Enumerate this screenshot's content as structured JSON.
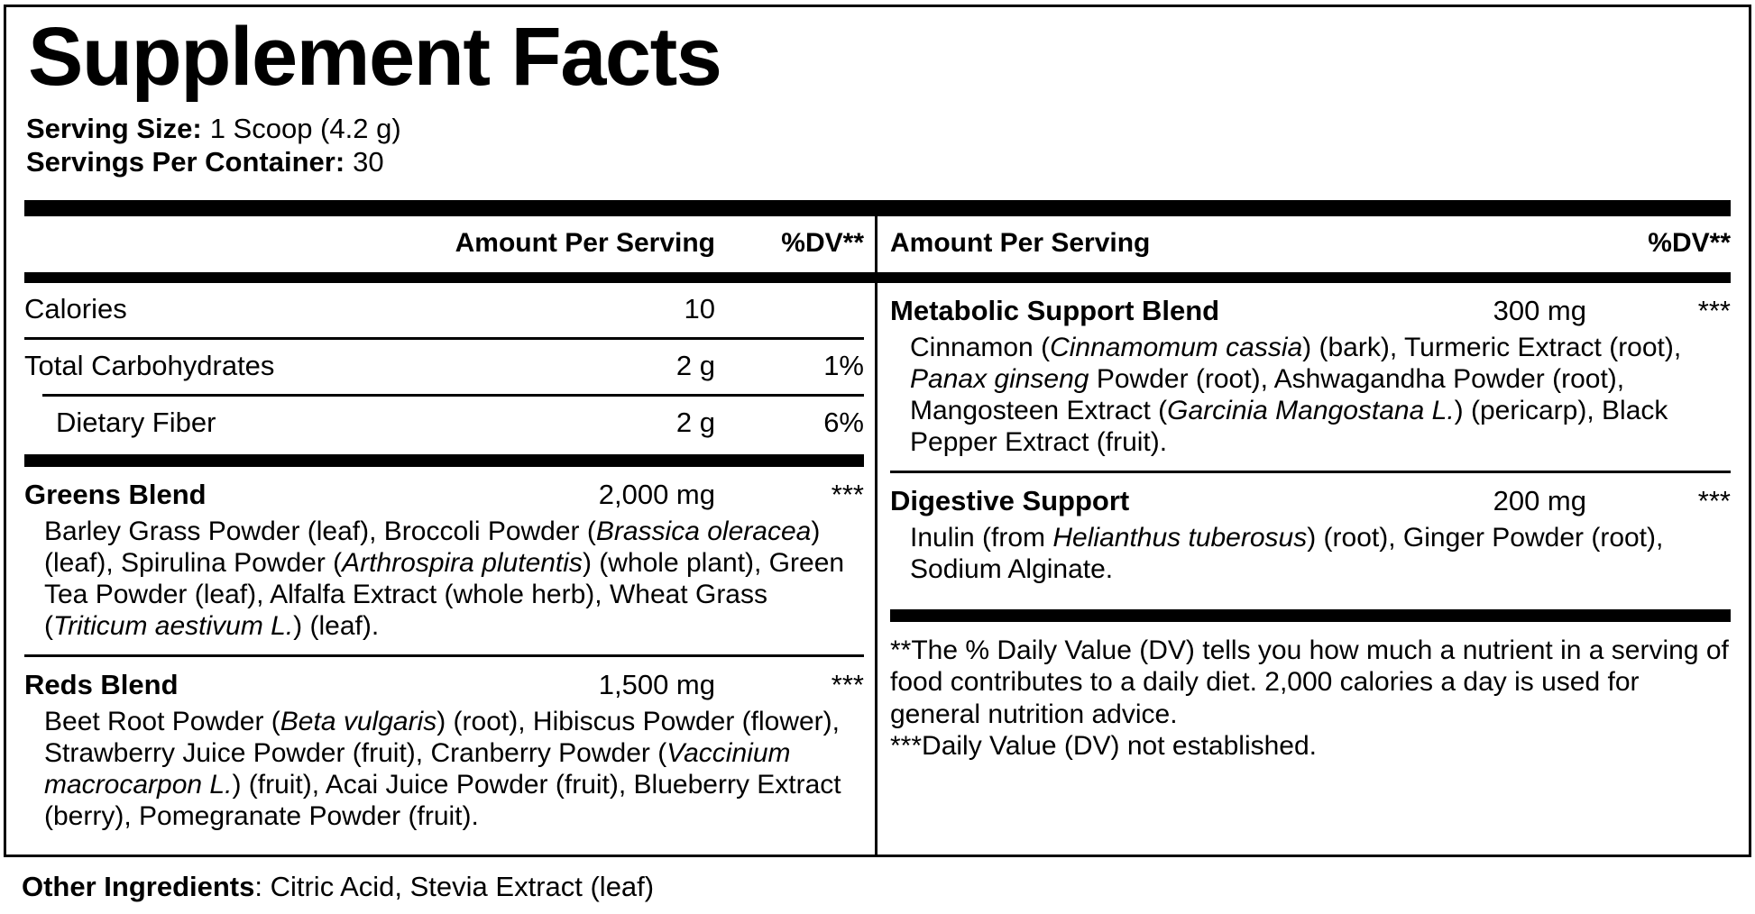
{
  "title": "Supplement Facts",
  "serving": {
    "size_label": "Serving Size:",
    "size_value": "1 Scoop (4.2 g)",
    "per_container_label": "Servings Per Container:",
    "per_container_value": "30"
  },
  "left_column": {
    "header": {
      "amount_label": "Amount Per Serving",
      "dv_label": "%DV**"
    },
    "nutrients": [
      {
        "name": "Calories",
        "amount": "10",
        "dv": ""
      },
      {
        "name": "Total Carbohydrates",
        "amount": "2 g",
        "dv": "1%"
      },
      {
        "name": "Dietary Fiber",
        "amount": "2 g",
        "dv": "6%"
      }
    ],
    "blends": [
      {
        "name": "Greens Blend",
        "amount": "2,000 mg",
        "dv": "***",
        "ingredients": [
          {
            "t": "Barley Grass Powder (leaf), Broccoli Powder ("
          },
          {
            "t": "Brassica oleracea",
            "i": true
          },
          {
            "t": ") (leaf), Spirulina Powder ("
          },
          {
            "t": "Arthrospira plutentis",
            "i": true
          },
          {
            "t": ") (whole plant), Green Tea Powder (leaf), Alfalfa Extract (whole herb), Wheat Grass ("
          },
          {
            "t": "Triticum aestivum L.",
            "i": true
          },
          {
            "t": ") (leaf)."
          }
        ]
      },
      {
        "name": "Reds Blend",
        "amount": "1,500 mg",
        "dv": "***",
        "ingredients": [
          {
            "t": "Beet Root Powder ("
          },
          {
            "t": "Beta vulgaris",
            "i": true
          },
          {
            "t": ") (root), Hibiscus Powder (flower), Strawberry Juice Powder (fruit), Cranberry Powder ("
          },
          {
            "t": "Vaccinium macrocarpon L.",
            "i": true
          },
          {
            "t": ") (fruit), Acai Juice Powder (fruit), Blueberry Extract (berry), Pomegranate Powder (fruit)."
          }
        ]
      }
    ]
  },
  "right_column": {
    "header": {
      "amount_label": "Amount Per Serving",
      "dv_label": "%DV**"
    },
    "blends": [
      {
        "name": "Metabolic Support Blend",
        "amount": "300 mg",
        "dv": "***",
        "ingredients": [
          {
            "t": "Cinnamon ("
          },
          {
            "t": "Cinnamomum cassia",
            "i": true
          },
          {
            "t": ") (bark), Turmeric Extract (root), "
          },
          {
            "t": "Panax ginseng",
            "i": true
          },
          {
            "t": " Powder (root), Ashwagandha Powder (root), Mangosteen Extract ("
          },
          {
            "t": "Garcinia Mangostana L.",
            "i": true
          },
          {
            "t": ") (pericarp), Black Pepper Extract (fruit)."
          }
        ]
      },
      {
        "name": "Digestive Support",
        "amount": "200 mg",
        "dv": "***",
        "ingredients": [
          {
            "t": "Inulin (from "
          },
          {
            "t": "Helianthus tuberosus",
            "i": true
          },
          {
            "t": ") (root), Ginger Powder (root), Sodium Alginate."
          }
        ]
      }
    ],
    "footnotes": [
      "**The % Daily Value (DV) tells you how much a nutrient in a serving of food contributes to a daily diet. 2,000 calories a day is used for general nutrition advice.",
      "***Daily Value (DV) not established."
    ]
  },
  "other_ingredients": {
    "label": "Other Ingredients",
    "value": ": Citric Acid, Stevia Extract (leaf)"
  }
}
